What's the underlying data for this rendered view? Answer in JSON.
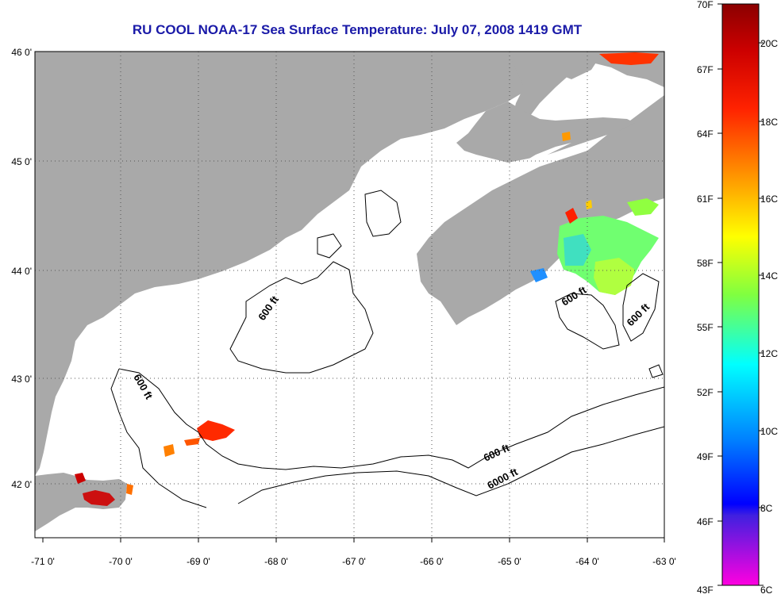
{
  "title": "RU COOL  NOAA-17  Sea Surface Temperature:  July 07, 2008 1419 GMT",
  "map": {
    "lon_ticks": [
      "-71 0'",
      "-70 0'",
      "-69 0'",
      "-68 0'",
      "-67 0'",
      "-66 0'",
      "-65 0'",
      "-64 0'",
      "-63 0'"
    ],
    "lat_ticks": [
      "46 0'",
      "45 0'",
      "44 0'",
      "43 0'",
      "42 0'"
    ],
    "lon_range": [
      -71,
      -63
    ],
    "lat_range": [
      41.5,
      46
    ],
    "land_color": "#a9a9a9",
    "water_color": "#ffffff",
    "contour_labels": [
      "600 ft",
      "600 ft",
      "600 ft",
      "600 ft",
      "600 ft",
      "6000 ft"
    ]
  },
  "colorbar": {
    "fahrenheit_labels": [
      "70F",
      "67F",
      "64F",
      "61F",
      "58F",
      "55F",
      "52F",
      "49F",
      "46F",
      "43F"
    ],
    "celsius_labels": [
      "20C",
      "18C",
      "16C",
      "14C",
      "12C",
      "10C",
      "8C",
      "6C"
    ],
    "colors": [
      "#8b0000",
      "#ff0000",
      "#ff8000",
      "#ffff00",
      "#80ff00",
      "#00ffff",
      "#0080ff",
      "#0000ff",
      "#8000c0",
      "#ff00ff"
    ]
  }
}
